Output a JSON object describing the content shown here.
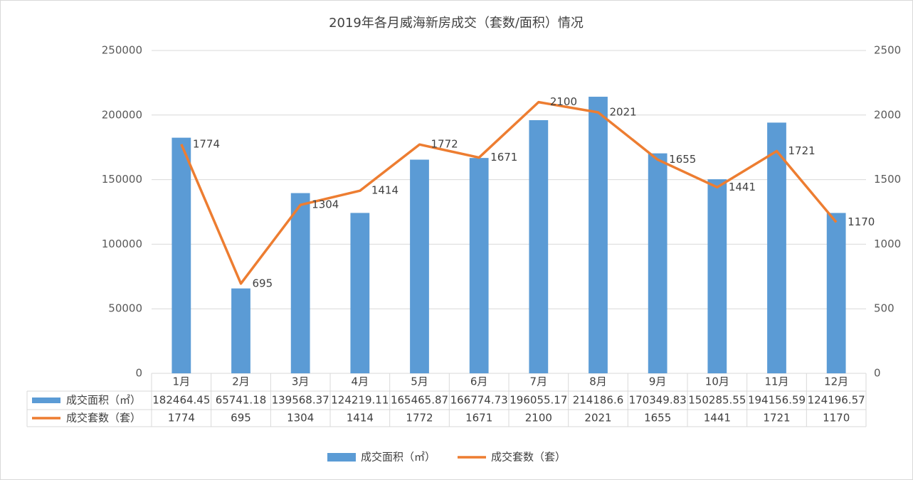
{
  "chart_data": {
    "type": "bar",
    "title": "2019年各月威海新房成交（套数/面积）情况",
    "categories": [
      "1月",
      "2月",
      "3月",
      "4月",
      "5月",
      "6月",
      "7月",
      "8月",
      "9月",
      "10月",
      "11月",
      "12月"
    ],
    "series": [
      {
        "name": "成交面积（㎡）",
        "color": "#5b9bd5",
        "type": "bar",
        "values": [
          182464.45,
          65741.18,
          139568.37,
          124219.11,
          165465.87,
          166774.73,
          196055.17,
          214186.6,
          170349.83,
          150285.55,
          194156.59,
          124196.57
        ]
      },
      {
        "name": "成交套数（套）",
        "color": "#ed7d31",
        "type": "line",
        "axis": "y2",
        "values": [
          1774,
          695,
          1304,
          1414,
          1772,
          1671,
          2100,
          2021,
          1655,
          1441,
          1721,
          1170
        ]
      }
    ],
    "ylim": [
      0,
      250000
    ],
    "yticks": [
      0,
      50000,
      100000,
      150000,
      200000,
      250000
    ],
    "y2lim": [
      0,
      2500
    ],
    "y2ticks": [
      0,
      500,
      1000,
      1500,
      2000,
      2500
    ],
    "grid": true
  }
}
